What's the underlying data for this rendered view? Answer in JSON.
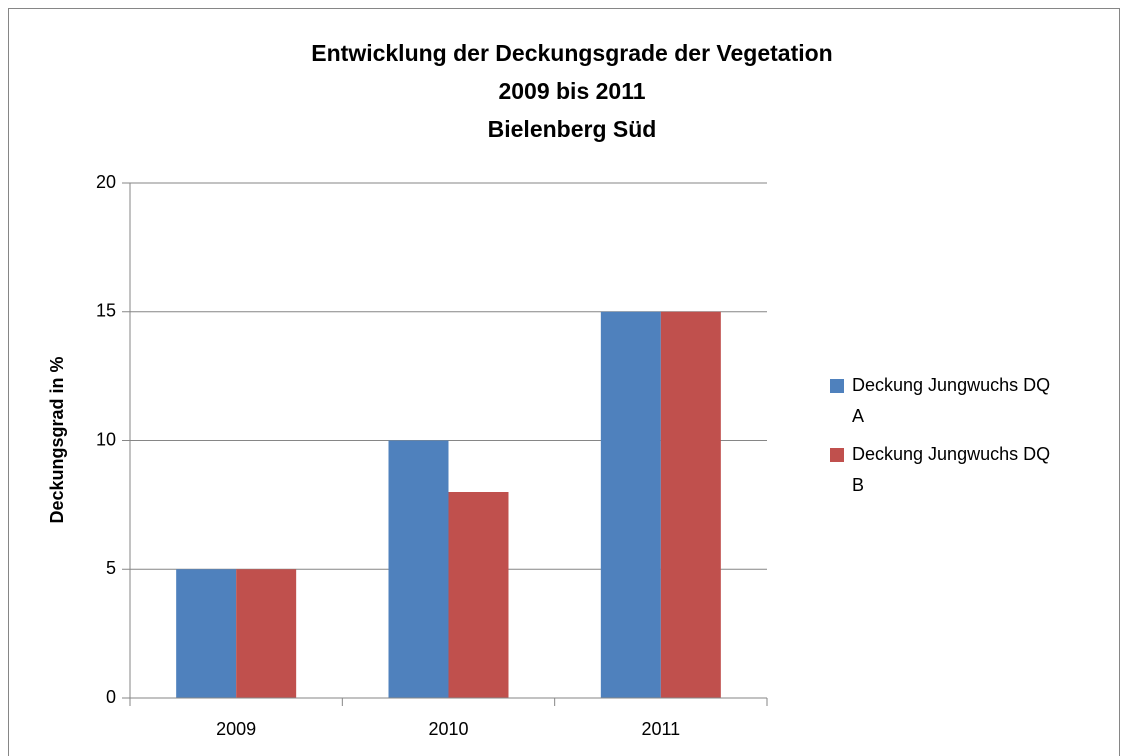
{
  "chart_data": {
    "type": "bar",
    "title": [
      "Entwicklung der Deckungsgrade der Vegetation",
      "2009 bis 2011",
      "Bielenberg Süd"
    ],
    "y_label": "Deckungsgrad in %",
    "categories": [
      "2009",
      "2010",
      "2011"
    ],
    "series": [
      {
        "name": "Deckung Jungwuchs DQ A",
        "color": "#4f81bd",
        "values": [
          5,
          10,
          15
        ]
      },
      {
        "name": "Deckung Jungwuchs DQ B",
        "color": "#c0504d",
        "values": [
          5,
          8,
          15
        ]
      }
    ],
    "ylim": [
      0,
      20
    ],
    "yticks": [
      0,
      5,
      10,
      15,
      20
    ],
    "grid": true,
    "legend": "right"
  }
}
